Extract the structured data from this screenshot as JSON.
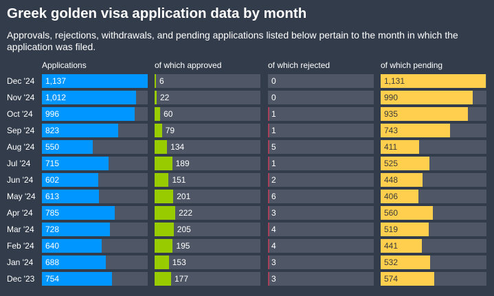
{
  "title": "Greek golden visa application data by month",
  "subtitle": "Approvals, rejections, withdrawals, and pending applications listed below pertain to the month in which the application was filed.",
  "chart_data": {
    "type": "bar",
    "title": "Greek golden visa application data by month",
    "categories": [
      "Dec '24",
      "Nov '24",
      "Oct '24",
      "Sep '24",
      "Aug '24",
      "Jul '24",
      "Jun '24",
      "May '24",
      "Apr '24",
      "Mar '24",
      "Feb '24",
      "Jan '24",
      "Dec '23"
    ],
    "xlim": [
      0,
      1137
    ],
    "series": [
      {
        "name": "Applications",
        "color": "#0096ff",
        "text_color": "#ffffff",
        "labels": [
          "1,137",
          "1,012",
          "996",
          "823",
          "550",
          "715",
          "602",
          "613",
          "785",
          "728",
          "640",
          "688",
          "754"
        ],
        "values": [
          1137,
          1012,
          996,
          823,
          550,
          715,
          602,
          613,
          785,
          728,
          640,
          688,
          754
        ]
      },
      {
        "name": "of which approved",
        "color": "#99cc00",
        "text_color": "#ffffff",
        "labels": [
          "6",
          "22",
          "60",
          "79",
          "134",
          "189",
          "151",
          "201",
          "222",
          "205",
          "195",
          "153",
          "177"
        ],
        "values": [
          6,
          22,
          60,
          79,
          134,
          189,
          151,
          201,
          222,
          205,
          195,
          153,
          177
        ]
      },
      {
        "name": "of which rejected",
        "color": "#a8405a",
        "text_color": "#ffffff",
        "labels": [
          "0",
          "0",
          "1",
          "1",
          "5",
          "1",
          "2",
          "6",
          "3",
          "4",
          "4",
          "3",
          "3"
        ],
        "values": [
          0,
          0,
          1,
          1,
          5,
          1,
          2,
          6,
          3,
          4,
          4,
          3,
          3
        ]
      },
      {
        "name": "of which pending",
        "color": "#ffcf4d",
        "text_color": "#3a3a3a",
        "labels": [
          "1,131",
          "990",
          "935",
          "743",
          "411",
          "525",
          "448",
          "406",
          "560",
          "519",
          "441",
          "532",
          "574"
        ],
        "values": [
          1131,
          990,
          935,
          743,
          411,
          525,
          448,
          406,
          560,
          519,
          441,
          532,
          574
        ]
      }
    ]
  }
}
